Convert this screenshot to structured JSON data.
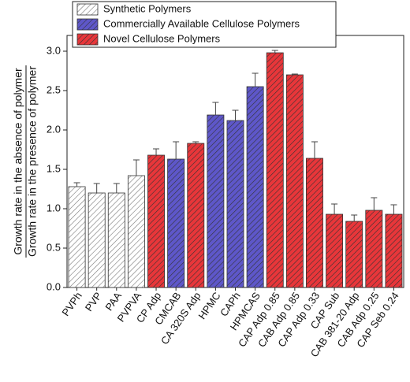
{
  "chart_data": {
    "type": "bar",
    "y_label_numerator": "Growth rate in the absence of polymer",
    "y_label_denominator": "Growth rate in the presence of polymer",
    "categories": [
      "PVPh",
      "PVP",
      "PAA",
      "PVPVA",
      "CP Adp",
      "CMCAB",
      "CA 320S Adp",
      "HPMC",
      "CAPh",
      "HPMCAS",
      "CAP Adp 0.85",
      "CAB Adp 0.85",
      "CAP Adp 0.33",
      "CAP Sub",
      "CAB 381-20 Adp",
      "CAB Adp 0.25",
      "CAP Seb 0.24"
    ],
    "series": [
      {
        "name": "Synthetic Polymers",
        "color": "#ffffff",
        "values": [
          1.28,
          1.2,
          1.2,
          1.42,
          null,
          null,
          null,
          null,
          null,
          null,
          null,
          null,
          null,
          null,
          null,
          null,
          null
        ],
        "errors": [
          0.05,
          0.12,
          0.12,
          0.2,
          null,
          null,
          null,
          null,
          null,
          null,
          null,
          null,
          null,
          null,
          null,
          null,
          null
        ]
      },
      {
        "name": "Commercially Available Cellulose Polymers",
        "color": "#5e57c9",
        "values": [
          null,
          null,
          null,
          null,
          null,
          1.63,
          null,
          2.19,
          2.12,
          2.55,
          null,
          null,
          null,
          null,
          null,
          null,
          null
        ],
        "errors": [
          null,
          null,
          null,
          null,
          null,
          0.22,
          null,
          0.16,
          0.13,
          0.17,
          null,
          null,
          null,
          null,
          null,
          null,
          null
        ]
      },
      {
        "name": "Novel Cellulose Polymers",
        "color": "#e8363a",
        "values": [
          null,
          null,
          null,
          null,
          1.68,
          null,
          1.83,
          null,
          null,
          null,
          2.98,
          2.7,
          1.64,
          0.93,
          0.84,
          0.98,
          0.93
        ],
        "errors": [
          null,
          null,
          null,
          null,
          0.08,
          null,
          0.02,
          null,
          null,
          null,
          0.03,
          0.01,
          0.21,
          0.13,
          0.08,
          0.16,
          0.12
        ]
      }
    ],
    "ylim": [
      0,
      3.2
    ],
    "yticks": [
      {
        "value": 0,
        "label": "0.0"
      },
      0.5,
      {
        "value": 1,
        "label": "1.0"
      },
      1.5,
      {
        "value": 2,
        "label": "2.0"
      },
      2.5,
      {
        "value": 3,
        "label": "3.0"
      }
    ],
    "hatch": true
  }
}
